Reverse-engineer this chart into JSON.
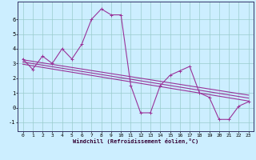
{
  "xlabel": "Windchill (Refroidissement éolien,°C)",
  "bg_color": "#cceeff",
  "grid_color": "#99cccc",
  "line_color": "#993399",
  "xlim": [
    -0.5,
    23.5
  ],
  "ylim": [
    -1.6,
    7.2
  ],
  "xticks": [
    0,
    1,
    2,
    3,
    4,
    5,
    6,
    7,
    8,
    9,
    10,
    11,
    12,
    13,
    14,
    15,
    16,
    17,
    18,
    19,
    20,
    21,
    22,
    23
  ],
  "yticks": [
    -1,
    0,
    1,
    2,
    3,
    4,
    5,
    6
  ],
  "line1_x": [
    0,
    1,
    2,
    3,
    4,
    5,
    6,
    7,
    8,
    9,
    10,
    11,
    12,
    13,
    14,
    15,
    16,
    17,
    18,
    19,
    20,
    21,
    22,
    23
  ],
  "line1_y": [
    3.3,
    2.6,
    3.5,
    3.0,
    4.0,
    3.3,
    4.3,
    6.0,
    6.7,
    6.3,
    6.3,
    1.5,
    -0.35,
    -0.35,
    1.5,
    2.2,
    2.5,
    2.8,
    1.0,
    0.7,
    -0.8,
    -0.8,
    0.1,
    0.4
  ],
  "line2_x": [
    0,
    23
  ],
  "line2_y": [
    3.25,
    0.85
  ],
  "line3_x": [
    0,
    23
  ],
  "line3_y": [
    3.1,
    0.65
  ],
  "line4_x": [
    0,
    23
  ],
  "line4_y": [
    2.95,
    0.45
  ]
}
